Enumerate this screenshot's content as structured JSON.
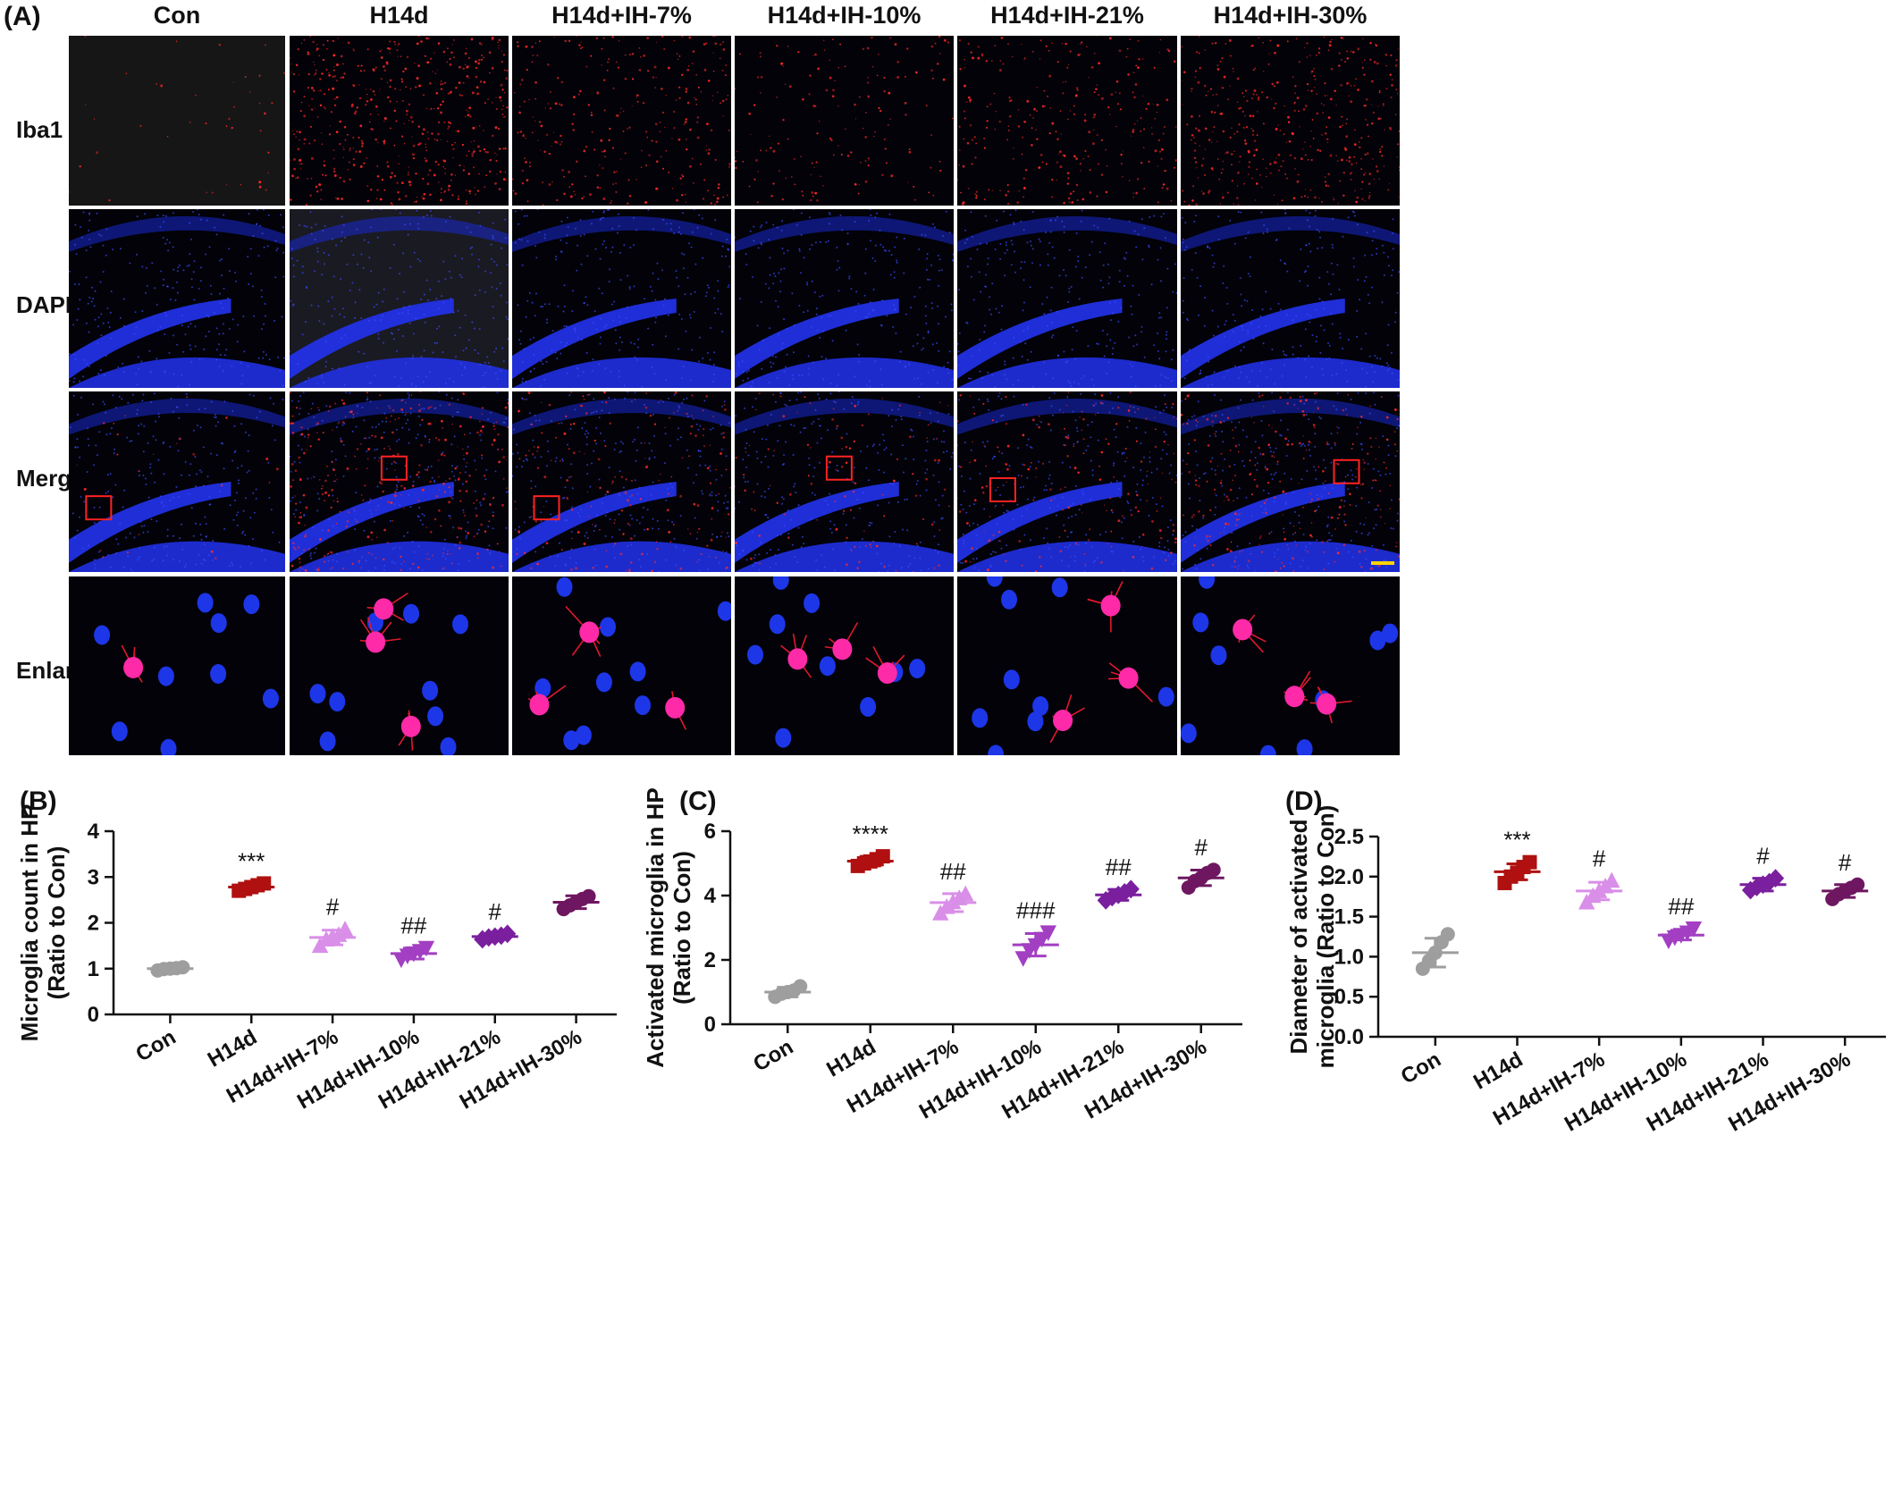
{
  "panel_a": {
    "tag": "(A)",
    "columns": [
      "Con",
      "H14d",
      "H14d+IH-7%",
      "H14d+IH-10%",
      "H14d+IH-21%",
      "H14d+IH-30%"
    ],
    "rows": [
      "Iba1",
      "DAPI",
      "Merge",
      "Enlarge"
    ]
  },
  "colors": {
    "Con": "#9e9e9e",
    "H14d": "#b01010",
    "H14d+IH-7%": "#d98ee8",
    "H14d+IH-10%": "#a23fc2",
    "H14d+IH-21%": "#7a1f9e",
    "H14d+IH-30%": "#6e1760",
    "scalebar": "#ffd400",
    "roi_box": "#ff2222"
  },
  "chart_data": [
    {
      "tag": "(B)",
      "type": "scatter",
      "ylabel_line1": "Microglia count in HP",
      "ylabel_line2": "(Ratio to Con)",
      "ylim": [
        0,
        4
      ],
      "yticks": [
        "0",
        "1",
        "2",
        "3",
        "4"
      ],
      "categories": [
        "Con",
        "H14d",
        "H14d+IH-7%",
        "H14d+IH-10%",
        "H14d+IH-21%",
        "H14d+IH-30%"
      ],
      "markers": [
        "circle",
        "square",
        "triangle-up",
        "triangle-down",
        "diamond",
        "circle"
      ],
      "means": [
        1.0,
        2.78,
        1.68,
        1.33,
        1.7,
        2.45
      ],
      "sds": [
        0.04,
        0.08,
        0.16,
        0.12,
        0.06,
        0.14
      ],
      "points": [
        [
          0.96,
          0.99,
          1.0,
          1.01,
          1.03
        ],
        [
          2.7,
          2.74,
          2.78,
          2.82,
          2.86
        ],
        [
          1.5,
          1.64,
          1.7,
          1.74,
          1.86
        ],
        [
          1.2,
          1.28,
          1.33,
          1.38,
          1.45
        ],
        [
          1.64,
          1.68,
          1.7,
          1.72,
          1.76
        ],
        [
          2.3,
          2.38,
          2.45,
          2.52,
          2.58
        ]
      ],
      "annotations": [
        "",
        "***",
        "#",
        "##",
        "#",
        ""
      ]
    },
    {
      "tag": "(C)",
      "type": "scatter",
      "ylabel_line1": "Activated microglia in HP",
      "ylabel_line2": "(Ratio to Con)",
      "ylim": [
        0,
        6
      ],
      "yticks": [
        "0",
        "2",
        "4",
        "6"
      ],
      "categories": [
        "Con",
        "H14d",
        "H14d+IH-7%",
        "H14d+IH-10%",
        "H14d+IH-21%",
        "H14d+IH-30%"
      ],
      "markers": [
        "circle",
        "square",
        "triangle-up",
        "triangle-down",
        "diamond",
        "circle"
      ],
      "means": [
        1.0,
        5.07,
        3.78,
        2.47,
        4.02,
        4.55
      ],
      "sds": [
        0.15,
        0.15,
        0.28,
        0.35,
        0.17,
        0.24
      ],
      "points": [
        [
          0.85,
          0.95,
          1.0,
          1.05,
          1.18
        ],
        [
          4.92,
          5.0,
          5.06,
          5.13,
          5.22
        ],
        [
          3.45,
          3.65,
          3.8,
          3.92,
          4.05
        ],
        [
          2.05,
          2.3,
          2.45,
          2.65,
          2.85
        ],
        [
          3.85,
          3.95,
          4.02,
          4.1,
          4.2
        ],
        [
          4.25,
          4.45,
          4.55,
          4.7,
          4.8
        ]
      ],
      "annotations": [
        "",
        "****",
        "##",
        "###",
        "##",
        "#"
      ]
    },
    {
      "tag": "(D)",
      "type": "scatter",
      "ylabel_line1": "Diameter of  activated",
      "ylabel_line2": "microglia (Ratio to Con)",
      "ylim": [
        0,
        2.5
      ],
      "yticks": [
        "0.0",
        "0.5",
        "1.0",
        "1.5",
        "2.0",
        "2.5"
      ],
      "categories": [
        "Con",
        "H14d",
        "H14d+IH-7%",
        "H14d+IH-10%",
        "H14d+IH-21%",
        "H14d+IH-30%"
      ],
      "markers": [
        "circle",
        "square",
        "triangle-up",
        "triangle-down",
        "diamond",
        "circle"
      ],
      "means": [
        1.05,
        2.06,
        1.82,
        1.27,
        1.9,
        1.82
      ],
      "sds": [
        0.18,
        0.1,
        0.11,
        0.06,
        0.08,
        0.08
      ],
      "points": [
        [
          0.85,
          0.95,
          1.05,
          1.18,
          1.28
        ],
        [
          1.92,
          2.0,
          2.05,
          2.12,
          2.18
        ],
        [
          1.68,
          1.76,
          1.82,
          1.88,
          1.95
        ],
        [
          1.2,
          1.24,
          1.27,
          1.3,
          1.35
        ],
        [
          1.83,
          1.87,
          1.9,
          1.93,
          1.98
        ],
        [
          1.72,
          1.78,
          1.82,
          1.86,
          1.9
        ]
      ],
      "annotations": [
        "",
        "***",
        "#",
        "##",
        "#",
        "#"
      ]
    }
  ]
}
